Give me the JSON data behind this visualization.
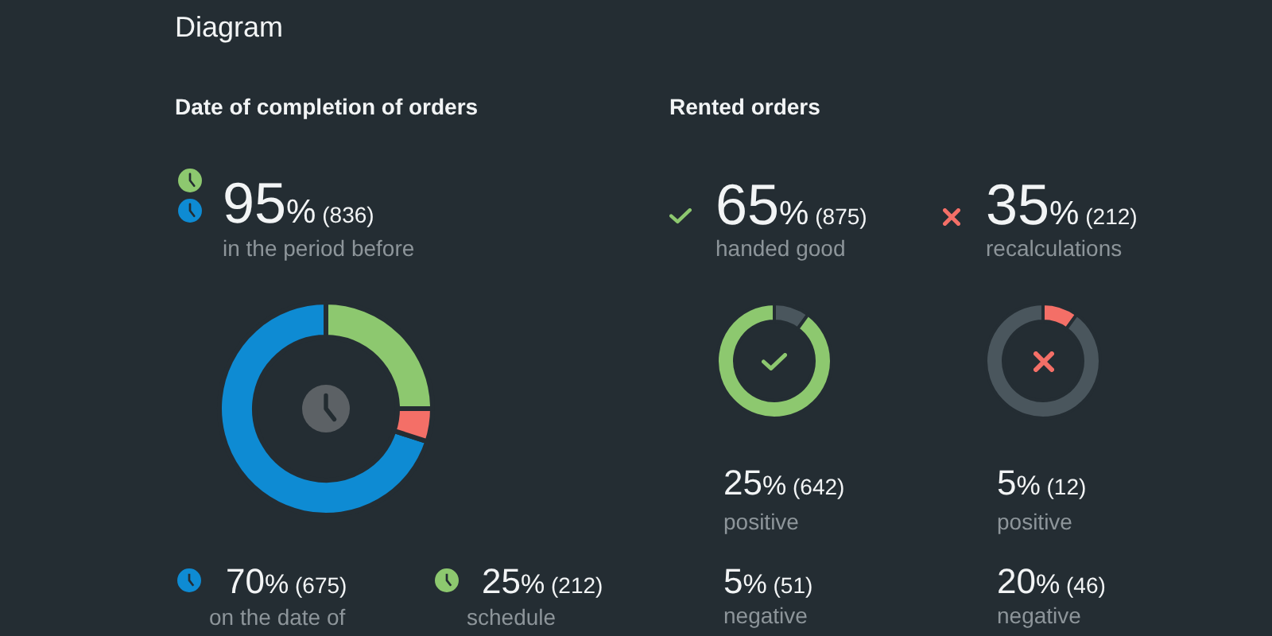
{
  "chart_data": [
    {
      "type": "other",
      "title": "Diagram"
    },
    {
      "type": "donut",
      "title": "Date of completion of orders",
      "categories": [
        "on the date of",
        null,
        "schedule"
      ],
      "values": [
        70,
        5,
        25
      ],
      "colors": [
        "#0e8bd3",
        "#f46f67",
        "#8dc86f"
      ],
      "value_labels": [
        "70% (675)",
        null,
        "25% (212)"
      ],
      "legend": "bottom",
      "annotations": [
        "95% (836)",
        "in the period before"
      ]
    },
    {
      "type": "donut",
      "title": "Rented orders",
      "categories": [
        null,
        null
      ],
      "values": [
        10,
        90
      ],
      "colors": [
        "#4a565d",
        "#8dc86f"
      ],
      "annotations": [
        "65% (875)",
        "handed good",
        "25% (642)",
        "positive",
        "5% (51)",
        "negative"
      ]
    },
    {
      "type": "donut",
      "categories": [
        null,
        null
      ],
      "values": [
        10,
        90
      ],
      "colors": [
        "#f46f67",
        "#4a565d"
      ],
      "annotations": [
        "35% (212)",
        "recalculations",
        "5% (12)",
        "positive",
        "20% (46)",
        "negative"
      ]
    }
  ]
}
